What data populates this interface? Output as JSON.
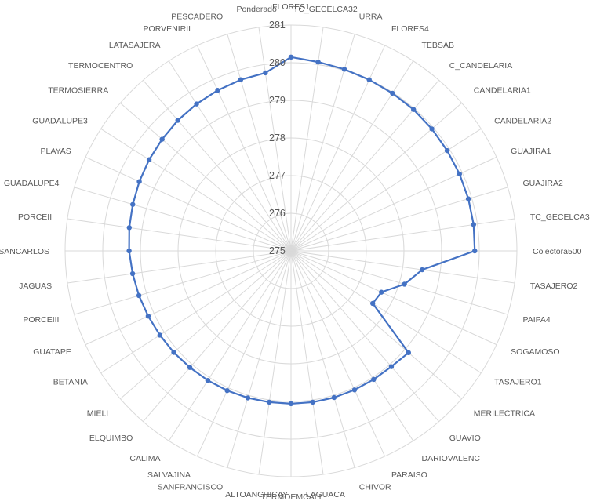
{
  "chart_data": {
    "type": "radar",
    "title": "",
    "rlim": [
      275,
      281
    ],
    "ticks": [
      275,
      276,
      277,
      278,
      279,
      280,
      281
    ],
    "grid": true,
    "legend": "none",
    "categories": [
      "FLORES1",
      "TC_GECELCA32",
      "URRA",
      "FLORES4",
      "TEBSAB",
      "C_CANDELARIA",
      "CANDELARIA1",
      "CANDELARIA2",
      "GUAJIRA1",
      "GUAJIRA2",
      "TC_GECELCA3",
      "Colectora500",
      "TASAJERO2",
      "PAIPA4",
      "SOGAMOSO",
      "TASAJERO1",
      "MERILECTRICA",
      "GUAVIO",
      "DARIOVALENC",
      "PARAISO",
      "CHIVOR",
      "LAGUACA",
      "TERMOEMCALI",
      "ALTOANCHICAY",
      "SANFRANCISCO",
      "SALVAJINA",
      "CALIMA",
      "ELQUIMBO",
      "MIELI",
      "BETANIA",
      "GUATAPE",
      "PORCEIII",
      "JAGUAS",
      "SANCARLOS",
      "PORCEII",
      "GUADALUPE4",
      "PLAYAS",
      "GUADALUPE3",
      "TERMOSIERRA",
      "TERMOCENTRO",
      "LATASAJERA",
      "PORVENIRII",
      "PESCADERO",
      "Ponderado"
    ],
    "series": [
      {
        "color": "#4472c4",
        "values": [
          280.15,
          280.07,
          280.03,
          280.0,
          279.98,
          279.97,
          279.95,
          279.93,
          279.92,
          279.91,
          279.9,
          279.88,
          278.52,
          278.14,
          277.64,
          277.58,
          279.13,
          279.07,
          279.06,
          279.06,
          279.06,
          279.06,
          279.06,
          279.06,
          279.07,
          279.08,
          279.09,
          279.1,
          279.12,
          279.14,
          279.17,
          279.21,
          279.25,
          279.3,
          279.34,
          279.38,
          279.43,
          279.48,
          279.53,
          279.59,
          279.64,
          279.69,
          279.74,
          279.78
        ]
      }
    ]
  }
}
